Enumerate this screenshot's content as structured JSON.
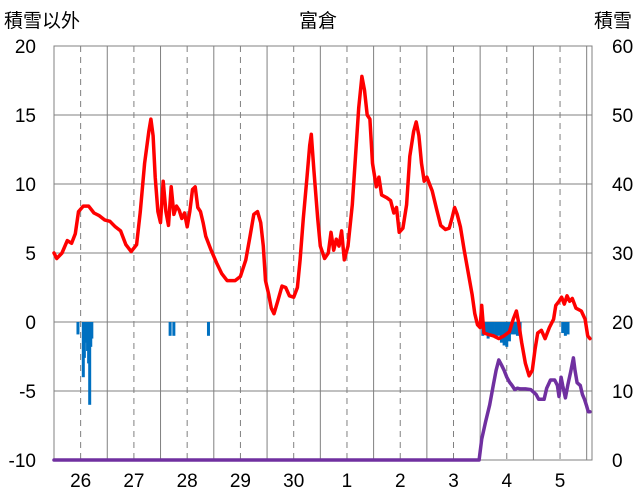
{
  "chart_data": {
    "type": "line",
    "title": "富倉",
    "ylabel_left": "積雪以外",
    "ylabel_right": "積雪",
    "y_left": {
      "min": -10,
      "max": 20,
      "ticks": [
        20,
        15,
        10,
        5,
        0,
        -5,
        -10
      ],
      "tick_labels": [
        "20",
        "15",
        "10",
        "5",
        "0",
        "-5",
        "-10"
      ]
    },
    "y_right": {
      "min": 0,
      "max": 60,
      "ticks": [
        60,
        50,
        40,
        30,
        20,
        10,
        0
      ],
      "tick_labels": [
        "60",
        "50",
        "40",
        "30",
        "20",
        "10",
        "0"
      ]
    },
    "x": {
      "min": 0,
      "max": 10.1,
      "tick_labels": [
        "26",
        "27",
        "28",
        "29",
        "30",
        "1",
        "2",
        "3",
        "4",
        "5"
      ],
      "tick_positions": [
        0.5,
        1.5,
        2.5,
        3.5,
        4.5,
        5.5,
        6.5,
        7.5,
        8.5,
        9.5
      ],
      "day_boundaries": [
        1,
        2,
        3,
        4,
        5,
        6,
        7,
        8,
        9,
        10
      ]
    },
    "grid": true,
    "series": [
      {
        "key": "temperature",
        "axis": "left",
        "color": "#ff0000",
        "points": [
          [
            0.0,
            5.0
          ],
          [
            0.05,
            4.6
          ],
          [
            0.15,
            5.0
          ],
          [
            0.25,
            5.9
          ],
          [
            0.33,
            5.7
          ],
          [
            0.4,
            6.4
          ],
          [
            0.46,
            8.0
          ],
          [
            0.55,
            8.4
          ],
          [
            0.65,
            8.4
          ],
          [
            0.75,
            7.9
          ],
          [
            0.85,
            7.7
          ],
          [
            0.95,
            7.4
          ],
          [
            1.05,
            7.3
          ],
          [
            1.15,
            6.9
          ],
          [
            1.25,
            6.6
          ],
          [
            1.35,
            5.6
          ],
          [
            1.45,
            5.1
          ],
          [
            1.55,
            5.6
          ],
          [
            1.62,
            8.0
          ],
          [
            1.7,
            11.5
          ],
          [
            1.78,
            13.8
          ],
          [
            1.82,
            14.7
          ],
          [
            1.86,
            13.5
          ],
          [
            1.9,
            10.5
          ],
          [
            1.95,
            8.0
          ],
          [
            2.0,
            7.2
          ],
          [
            2.05,
            10.2
          ],
          [
            2.1,
            8.0
          ],
          [
            2.15,
            7.0
          ],
          [
            2.2,
            9.8
          ],
          [
            2.25,
            7.8
          ],
          [
            2.3,
            8.4
          ],
          [
            2.35,
            8.1
          ],
          [
            2.4,
            7.5
          ],
          [
            2.45,
            7.9
          ],
          [
            2.5,
            6.9
          ],
          [
            2.55,
            8.0
          ],
          [
            2.6,
            9.6
          ],
          [
            2.65,
            9.8
          ],
          [
            2.7,
            8.3
          ],
          [
            2.75,
            8.0
          ],
          [
            2.8,
            7.2
          ],
          [
            2.85,
            6.2
          ],
          [
            2.95,
            5.2
          ],
          [
            3.05,
            4.3
          ],
          [
            3.15,
            3.5
          ],
          [
            3.25,
            3.0
          ],
          [
            3.4,
            3.0
          ],
          [
            3.5,
            3.3
          ],
          [
            3.6,
            4.5
          ],
          [
            3.68,
            6.2
          ],
          [
            3.75,
            7.8
          ],
          [
            3.82,
            8.0
          ],
          [
            3.88,
            7.2
          ],
          [
            3.93,
            5.5
          ],
          [
            3.97,
            3.0
          ],
          [
            4.03,
            2.0
          ],
          [
            4.08,
            1.0
          ],
          [
            4.13,
            0.6
          ],
          [
            4.2,
            1.5
          ],
          [
            4.28,
            2.6
          ],
          [
            4.35,
            2.5
          ],
          [
            4.42,
            1.9
          ],
          [
            4.5,
            1.8
          ],
          [
            4.57,
            2.5
          ],
          [
            4.62,
            4.5
          ],
          [
            4.68,
            7.5
          ],
          [
            4.75,
            10.5
          ],
          [
            4.8,
            12.8
          ],
          [
            4.83,
            13.6
          ],
          [
            4.88,
            11.0
          ],
          [
            4.95,
            7.5
          ],
          [
            5.0,
            5.5
          ],
          [
            5.08,
            4.6
          ],
          [
            5.15,
            5.0
          ],
          [
            5.2,
            6.5
          ],
          [
            5.25,
            5.2
          ],
          [
            5.3,
            6.0
          ],
          [
            5.35,
            5.5
          ],
          [
            5.4,
            6.6
          ],
          [
            5.45,
            4.5
          ],
          [
            5.52,
            5.5
          ],
          [
            5.6,
            8.5
          ],
          [
            5.66,
            12.0
          ],
          [
            5.72,
            15.5
          ],
          [
            5.78,
            17.8
          ],
          [
            5.83,
            16.8
          ],
          [
            5.88,
            15.0
          ],
          [
            5.93,
            14.7
          ],
          [
            5.98,
            11.5
          ],
          [
            6.05,
            9.8
          ],
          [
            6.1,
            10.5
          ],
          [
            6.15,
            9.2
          ],
          [
            6.25,
            9.0
          ],
          [
            6.32,
            8.8
          ],
          [
            6.38,
            7.9
          ],
          [
            6.43,
            8.3
          ],
          [
            6.48,
            6.5
          ],
          [
            6.55,
            6.8
          ],
          [
            6.62,
            8.5
          ],
          [
            6.68,
            12.0
          ],
          [
            6.75,
            13.8
          ],
          [
            6.8,
            14.5
          ],
          [
            6.85,
            13.5
          ],
          [
            6.9,
            11.5
          ],
          [
            6.95,
            10.2
          ],
          [
            7.0,
            10.5
          ],
          [
            7.05,
            10.0
          ],
          [
            7.1,
            9.5
          ],
          [
            7.18,
            8.2
          ],
          [
            7.26,
            7.0
          ],
          [
            7.35,
            6.7
          ],
          [
            7.42,
            6.8
          ],
          [
            7.47,
            7.5
          ],
          [
            7.52,
            8.3
          ],
          [
            7.57,
            7.8
          ],
          [
            7.63,
            6.9
          ],
          [
            7.7,
            5.2
          ],
          [
            7.78,
            3.5
          ],
          [
            7.85,
            2.0
          ],
          [
            7.9,
            0.6
          ],
          [
            7.95,
            -0.2
          ],
          [
            8.0,
            -0.4
          ],
          [
            8.03,
            1.2
          ],
          [
            8.07,
            -0.8
          ],
          [
            8.15,
            -0.9
          ],
          [
            8.25,
            -1.0
          ],
          [
            8.35,
            -1.2
          ],
          [
            8.45,
            -1.0
          ],
          [
            8.55,
            -0.7
          ],
          [
            8.62,
            0.2
          ],
          [
            8.68,
            0.8
          ],
          [
            8.72,
            0.0
          ],
          [
            8.78,
            -1.5
          ],
          [
            8.85,
            -3.0
          ],
          [
            8.92,
            -3.9
          ],
          [
            8.98,
            -3.5
          ],
          [
            9.03,
            -2.0
          ],
          [
            9.08,
            -0.8
          ],
          [
            9.15,
            -0.6
          ],
          [
            9.22,
            -1.2
          ],
          [
            9.3,
            -0.4
          ],
          [
            9.38,
            0.2
          ],
          [
            9.42,
            1.2
          ],
          [
            9.48,
            1.5
          ],
          [
            9.53,
            1.8
          ],
          [
            9.58,
            1.3
          ],
          [
            9.63,
            1.9
          ],
          [
            9.68,
            1.5
          ],
          [
            9.73,
            1.7
          ],
          [
            9.8,
            1.0
          ],
          [
            9.9,
            0.8
          ],
          [
            9.97,
            0.2
          ],
          [
            10.02,
            -1.0
          ],
          [
            10.06,
            -1.2
          ]
        ]
      },
      {
        "key": "snow_depth",
        "axis": "right",
        "color": "#7030a0",
        "points": [
          [
            0.0,
            0.0
          ],
          [
            7.98,
            0.0
          ],
          [
            8.03,
            3.0
          ],
          [
            8.1,
            5.5
          ],
          [
            8.18,
            8.0
          ],
          [
            8.25,
            11.0
          ],
          [
            8.3,
            13.0
          ],
          [
            8.35,
            14.5
          ],
          [
            8.4,
            13.8
          ],
          [
            8.45,
            13.0
          ],
          [
            8.5,
            12.0
          ],
          [
            8.55,
            11.3
          ],
          [
            8.6,
            10.8
          ],
          [
            8.65,
            10.2
          ],
          [
            8.7,
            10.4
          ],
          [
            8.75,
            10.3
          ],
          [
            8.85,
            10.3
          ],
          [
            8.95,
            10.2
          ],
          [
            9.05,
            9.5
          ],
          [
            9.1,
            8.8
          ],
          [
            9.2,
            8.8
          ],
          [
            9.25,
            10.4
          ],
          [
            9.32,
            11.6
          ],
          [
            9.4,
            11.6
          ],
          [
            9.45,
            10.8
          ],
          [
            9.48,
            9.2
          ],
          [
            9.52,
            12.0
          ],
          [
            9.55,
            10.8
          ],
          [
            9.6,
            9.0
          ],
          [
            9.65,
            11.0
          ],
          [
            9.7,
            12.8
          ],
          [
            9.75,
            14.8
          ],
          [
            9.78,
            13.0
          ],
          [
            9.82,
            11.2
          ],
          [
            9.88,
            10.8
          ],
          [
            9.92,
            9.5
          ],
          [
            9.96,
            8.8
          ],
          [
            10.0,
            7.8
          ],
          [
            10.03,
            7.0
          ],
          [
            10.06,
            7.0
          ]
        ]
      },
      {
        "key": "precipitation",
        "axis": "left",
        "color": "#0070c0",
        "type": "bar",
        "bars": [
          [
            0.45,
            -0.9
          ],
          [
            0.55,
            -4.0
          ],
          [
            0.57,
            -2.6
          ],
          [
            0.59,
            -1.4
          ],
          [
            0.61,
            -1.5
          ],
          [
            0.63,
            -2.1
          ],
          [
            0.65,
            -3.0
          ],
          [
            0.67,
            -6.0
          ],
          [
            0.69,
            -1.8
          ],
          [
            0.71,
            -1.2
          ],
          [
            2.18,
            -1.0
          ],
          [
            2.25,
            -1.0
          ],
          [
            2.9,
            -1.0
          ],
          [
            8.05,
            -1.0
          ],
          [
            8.1,
            -0.9
          ],
          [
            8.15,
            -1.2
          ],
          [
            8.2,
            -1.0
          ],
          [
            8.25,
            -1.1
          ],
          [
            8.3,
            -1.2
          ],
          [
            8.35,
            -1.0
          ],
          [
            8.4,
            -1.5
          ],
          [
            8.45,
            -1.7
          ],
          [
            8.5,
            -1.8
          ],
          [
            8.55,
            -1.4
          ],
          [
            8.6,
            -0.9
          ],
          [
            8.65,
            -0.9
          ],
          [
            8.7,
            -1.0
          ],
          [
            8.75,
            -1.0
          ],
          [
            9.55,
            -0.8
          ],
          [
            9.6,
            -1.0
          ],
          [
            9.65,
            -0.9
          ]
        ]
      }
    ]
  }
}
